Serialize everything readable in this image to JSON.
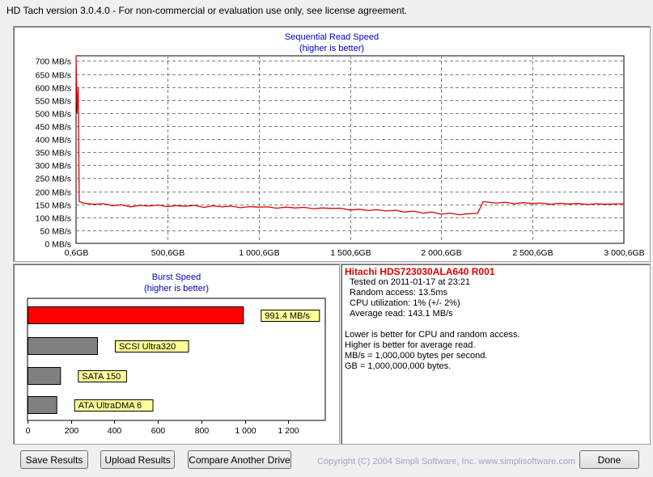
{
  "window": {
    "title": "HD Tach version 3.0.4.0  - For non-commercial or evaluation use only, see license agreement."
  },
  "sequential": {
    "title": "Sequential Read Speed",
    "subtitle": "(higher is better)"
  },
  "burst": {
    "title": "Burst Speed",
    "subtitle": "(higher is better)"
  },
  "info": {
    "drive": "Hitachi HDS723030ALA640 R001",
    "tested_on": "Tested on 2011-01-17 at 23:21",
    "random_access": "Random access: 13.5ms",
    "cpu": "CPU utilization: 1% (+/- 2%)",
    "average_read": "Average read: 143.1 MB/s",
    "notes": [
      "Lower is better for CPU and random access.",
      "Higher is better for average read.",
      "MB/s = 1,000,000 bytes per second.",
      "GB = 1,000,000,000 bytes."
    ]
  },
  "buttons": {
    "save": "Save Results",
    "upload": "Upload Results",
    "compare": "Compare Another Drive",
    "done": "Done"
  },
  "copyright": "Copyright (C) 2004 Simpli Software, Inc. www.simplisoftware.com",
  "colors": {
    "read_line": "#e00000",
    "burst_bar": "#ff0000",
    "ref_bar": "#808080",
    "label_bg": "#ffff99",
    "title_blue": "#0000c0"
  },
  "chart_data": [
    {
      "type": "line",
      "title": "Sequential Read Speed",
      "subtitle": "(higher is better)",
      "ylim": [
        0,
        720
      ],
      "y_ticks": [
        0,
        50,
        100,
        150,
        200,
        250,
        300,
        350,
        400,
        450,
        500,
        550,
        600,
        650,
        700
      ],
      "y_tick_labels": [
        "0 MB/s",
        "50 MB/s",
        "100 MB/s",
        "150 MB/s",
        "200 MB/s",
        "250 MB/s",
        "300 MB/s",
        "350 MB/s",
        "400 MB/s",
        "450 MB/s",
        "500 MB/s",
        "550 MB/s",
        "600 MB/s",
        "650 MB/s",
        "700 MB/s"
      ],
      "xlim": [
        0.6,
        3000.6
      ],
      "x_ticks": [
        0.6,
        500.6,
        1000.6,
        1500.6,
        2000.6,
        2500.6,
        3000.6
      ],
      "x_tick_labels": [
        "0,6GB",
        "500,6GB",
        "1 000,6GB",
        "1 500,6GB",
        "2 000,6GB",
        "2 500,6GB",
        "3 000,6GB"
      ],
      "grid": true,
      "series": [
        {
          "x": [
            0.6,
            6,
            12,
            18,
            40,
            100,
            150,
            200,
            250,
            300,
            350,
            400,
            450,
            500,
            550,
            600,
            650,
            700,
            750,
            800,
            850,
            900,
            950,
            1000,
            1050,
            1100,
            1150,
            1200,
            1250,
            1300,
            1350,
            1400,
            1450,
            1500,
            1550,
            1600,
            1650,
            1700,
            1750,
            1800,
            1850,
            1900,
            1950,
            2000,
            2050,
            2100,
            2150,
            2200,
            2230,
            2300,
            2350,
            2400,
            2450,
            2500,
            2550,
            2600,
            2650,
            2700,
            2750,
            2800,
            2850,
            2900,
            2950,
            3000.6
          ],
          "y": [
            730,
            500,
            600,
            160,
            155,
            150,
            152,
            145,
            148,
            140,
            146,
            143,
            147,
            141,
            145,
            142,
            146,
            138,
            144,
            140,
            143,
            137,
            141,
            139,
            140,
            135,
            139,
            136,
            138,
            133,
            136,
            134,
            135,
            128,
            131,
            126,
            129,
            124,
            127,
            120,
            124,
            116,
            120,
            112,
            116,
            110,
            114,
            115,
            160,
            155,
            158,
            152,
            156,
            153,
            155,
            150,
            154,
            151,
            153,
            149,
            152,
            150,
            151,
            152
          ]
        }
      ]
    },
    {
      "type": "bar",
      "title": "Burst Speed",
      "subtitle": "(higher is better)",
      "orientation": "horizontal",
      "categories": [
        "991.4 MB/s",
        "SCSI Ultra320",
        "SATA 150",
        "ATA UltraDMA 6"
      ],
      "values": [
        991.4,
        320,
        150,
        133
      ],
      "xlim": [
        0,
        1370
      ],
      "x_ticks": [
        0,
        200,
        400,
        600,
        800,
        1000,
        1200
      ],
      "x_tick_labels": [
        "0",
        "200",
        "400",
        "600",
        "800",
        "1 000",
        "1 200"
      ]
    }
  ]
}
